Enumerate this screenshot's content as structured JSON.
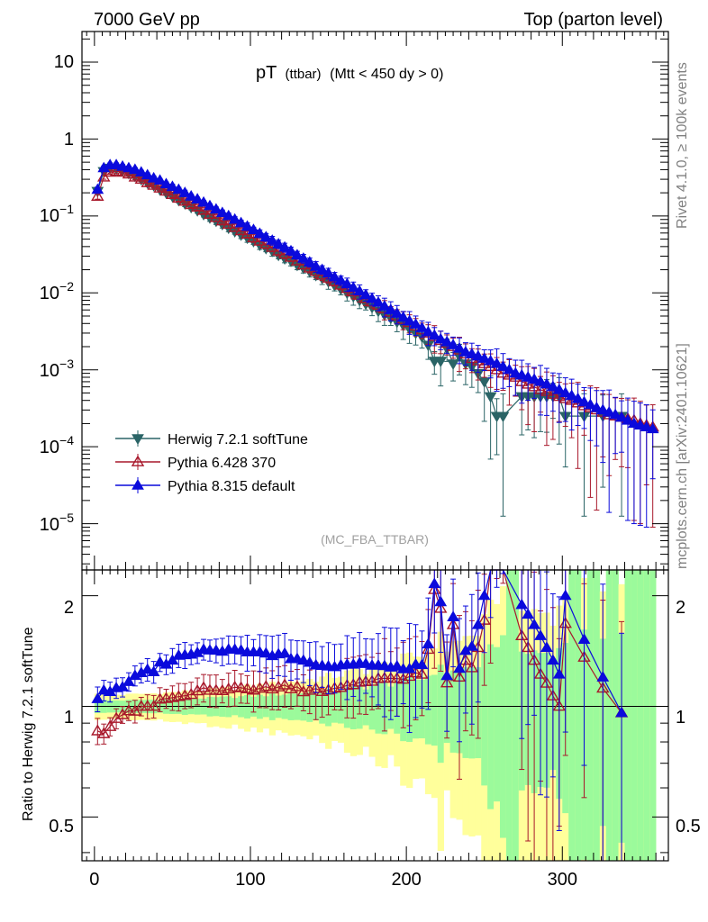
{
  "header": {
    "left": "7000 GeV pp",
    "right": "Top (parton level)"
  },
  "main": {
    "title_main": "pT",
    "title_sub": "(ttbar)",
    "title_cut": "(Mtt < 450 dy > 0)",
    "watermark": "(MC_FBA_TTBAR)",
    "ytick_labels": [
      "10",
      "1",
      "10^-1",
      "10^-2",
      "10^-3",
      "10^-4",
      "10^-5"
    ]
  },
  "side_labels": {
    "top": "Rivet 4.1.0, ≥ 100k events",
    "bottom": "mcplots.cern.ch [arXiv:2401.10621]"
  },
  "ratio": {
    "ylabel": "Ratio to Herwig 7.2.1 softTune",
    "ytick_labels": [
      "2",
      "1",
      "0.5"
    ]
  },
  "chart_data": [
    {
      "type": "scatter",
      "title": "pT (ttbar) (Mtt < 450 dy > 0)",
      "xlabel": "",
      "ylabel": "",
      "xlim": [
        -8,
        368
      ],
      "ylim": [
        2.5e-06,
        25
      ],
      "yscale": "log",
      "x_ticks": [
        0,
        100,
        200,
        300
      ],
      "legend_position": "lower-left",
      "x": [
        2,
        6,
        10,
        14,
        18,
        22,
        26,
        30,
        34,
        38,
        42,
        46,
        50,
        54,
        58,
        62,
        66,
        70,
        74,
        78,
        82,
        86,
        90,
        94,
        98,
        102,
        106,
        110,
        114,
        118,
        122,
        126,
        130,
        134,
        138,
        142,
        146,
        150,
        154,
        158,
        162,
        166,
        170,
        174,
        178,
        182,
        186,
        190,
        194,
        198,
        202,
        206,
        210,
        214,
        218,
        222,
        226,
        230,
        234,
        238,
        242,
        246,
        250,
        254,
        258,
        262,
        266,
        270,
        274,
        278,
        282,
        286,
        290,
        294,
        298,
        302,
        306,
        310,
        314,
        318,
        322,
        326,
        330,
        334,
        338,
        342,
        346,
        350,
        354,
        358
      ],
      "series": [
        {
          "name": "Herwig 7.2.1 softTune",
          "color": "#2a6466",
          "marker": "triangle-down",
          "values": [
            0.21,
            0.38,
            0.42,
            0.41,
            0.39,
            0.36,
            0.33,
            0.3,
            0.27,
            0.25,
            0.22,
            0.2,
            0.18,
            0.16,
            0.145,
            0.13,
            0.118,
            0.105,
            0.095,
            0.086,
            0.078,
            0.07,
            0.063,
            0.057,
            0.052,
            0.047,
            0.042,
            0.038,
            0.035,
            0.031,
            0.028,
            0.026,
            0.023,
            0.021,
            0.019,
            0.017,
            0.0155,
            0.014,
            0.0125,
            0.0112,
            0.01,
            0.009,
            0.008,
            0.0072,
            0.0065,
            0.0058,
            0.0052,
            0.0047,
            0.0042,
            0.0038,
            0.0034,
            0.003,
            0.0027,
            0.0021,
            0.0013,
            0.0013,
            0.0019,
            0.0012,
            0.0015,
            0.0012,
            0.0011,
            0.0009,
            0.0007,
            0.00045,
            0.00025,
            0.00025,
            null,
            null,
            0.00045,
            0.00045,
            0.00045,
            0.00045,
            0.00045,
            0.00045,
            0.00045,
            0.00025,
            null,
            null,
            0.00025,
            null,
            null,
            0.00025,
            null,
            null,
            0.00025,
            null,
            null,
            null,
            null,
            null
          ]
        },
        {
          "name": "Pythia 6.428 370",
          "color": "#a8182b",
          "marker": "triangle-up-open",
          "values": [
            0.18,
            0.32,
            0.37,
            0.38,
            0.37,
            0.35,
            0.32,
            0.3,
            0.27,
            0.25,
            0.23,
            0.21,
            0.19,
            0.17,
            0.155,
            0.14,
            0.13,
            0.118,
            0.105,
            0.095,
            0.086,
            0.078,
            0.071,
            0.064,
            0.058,
            0.052,
            0.047,
            0.043,
            0.039,
            0.035,
            0.032,
            0.029,
            0.026,
            0.023,
            0.021,
            0.019,
            0.017,
            0.0155,
            0.014,
            0.0126,
            0.0114,
            0.0103,
            0.0093,
            0.0084,
            0.0076,
            0.0069,
            0.0062,
            0.0056,
            0.005,
            0.0045,
            0.0041,
            0.0037,
            0.0033,
            0.003,
            0.0027,
            0.0024,
            0.0022,
            0.002,
            0.0018,
            0.0016,
            0.0014,
            0.0013,
            0.0012,
            0.0011,
            0.001,
            0.0009,
            0.00085,
            0.0008,
            0.0007,
            0.00065,
            0.0006,
            0.00055,
            0.00052,
            0.00048,
            0.00045,
            0.00042,
            0.0004,
            0.00037,
            0.00034,
            0.00032,
            0.0003,
            0.00028,
            0.00026,
            0.00025,
            0.00024,
            0.00023,
            0.00022,
            0.0002,
            0.00019,
            0.00018
          ]
        },
        {
          "name": "Pythia 8.315 default",
          "color": "#0a0adc",
          "marker": "triangle-up",
          "values": [
            0.22,
            0.42,
            0.46,
            0.46,
            0.44,
            0.42,
            0.4,
            0.37,
            0.34,
            0.31,
            0.29,
            0.26,
            0.24,
            0.22,
            0.2,
            0.18,
            0.165,
            0.15,
            0.135,
            0.122,
            0.11,
            0.1,
            0.09,
            0.081,
            0.073,
            0.066,
            0.059,
            0.053,
            0.048,
            0.043,
            0.039,
            0.035,
            0.031,
            0.028,
            0.025,
            0.022,
            0.02,
            0.018,
            0.016,
            0.0145,
            0.013,
            0.0117,
            0.0105,
            0.0094,
            0.0084,
            0.0075,
            0.0067,
            0.006,
            0.0054,
            0.0048,
            0.0043,
            0.0039,
            0.0035,
            0.0031,
            0.0028,
            0.0025,
            0.0023,
            0.0021,
            0.0019,
            0.0017,
            0.0016,
            0.0015,
            0.0014,
            0.0013,
            0.0012,
            0.0011,
            0.001,
            0.0009,
            0.00085,
            0.0008,
            0.00075,
            0.0007,
            0.00065,
            0.0006,
            0.00055,
            0.0005,
            0.00046,
            0.00042,
            0.00038,
            0.00035,
            0.00032,
            0.0003,
            0.00028,
            0.00026,
            0.00024,
            0.00022,
            0.0002,
            0.00019,
            0.00018,
            0.00017
          ]
        }
      ]
    },
    {
      "type": "scatter",
      "title": "",
      "xlabel": "",
      "ylabel": "Ratio to Herwig 7.2.1 softTune",
      "xlim": [
        -8,
        368
      ],
      "ylim": [
        0.38,
        2.35
      ],
      "yscale": "log",
      "reference_line": 1,
      "bands": [
        {
          "name": "inner uncertainty",
          "color": "#9bfa9b"
        },
        {
          "name": "outer uncertainty",
          "color": "#ffff9b"
        }
      ]
    }
  ]
}
